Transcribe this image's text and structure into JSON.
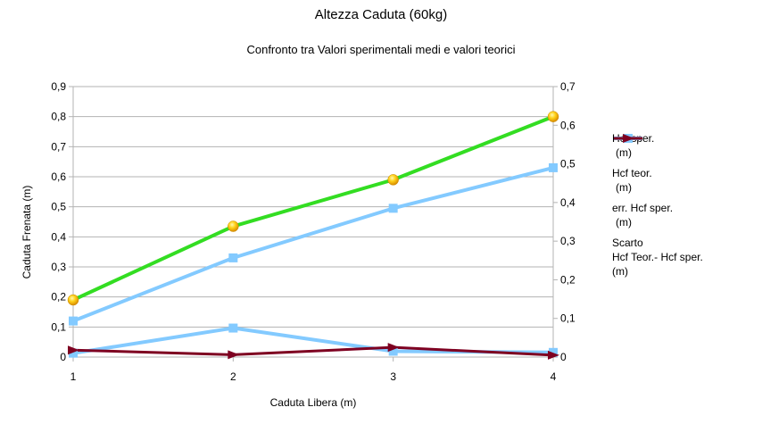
{
  "chart_data": {
    "type": "line",
    "title": "Altezza Caduta (60kg)",
    "subtitle": "Confronto tra Valori sperimentali medi e valori teorici",
    "xlabel": "Caduta Libera (m)",
    "ylabel": "Caduta Frenata (m)",
    "x": [
      1,
      2,
      3,
      4
    ],
    "x_ticks": [
      "1",
      "2",
      "3",
      "4"
    ],
    "y_left": {
      "range": [
        0,
        0.9
      ],
      "ticks": [
        "0",
        "0,1",
        "0,2",
        "0,3",
        "0,4",
        "0,5",
        "0,6",
        "0,7",
        "0,8",
        "0,9"
      ]
    },
    "y_right": {
      "range": [
        0,
        0.7
      ],
      "ticks": [
        "0",
        "0,1",
        "0,2",
        "0,3",
        "0,4",
        "0,5",
        "0,6",
        "0,7"
      ]
    },
    "grid": true,
    "legend_position": "right",
    "series": [
      {
        "name": "Hcf sper. (m)",
        "legend_lines": [
          "Hcf sper.",
          "(m)"
        ],
        "axis": "left",
        "color": "#83caff",
        "marker": "square",
        "values": [
          0.12,
          0.33,
          0.495,
          0.63
        ]
      },
      {
        "name": "Hcf teor. (m)",
        "legend_lines": [
          "Hcf teor.",
          "(m)"
        ],
        "axis": "left",
        "color": "#33dd22",
        "marker": "ball",
        "values": [
          0.19,
          0.435,
          0.59,
          0.8
        ]
      },
      {
        "name": "err. Hcf sper. (m)",
        "legend_lines": [
          "err. Hcf sper.",
          "(m)"
        ],
        "axis": "right",
        "color": "#83caff",
        "marker": "square",
        "values": [
          0.01,
          0.075,
          0.015,
          0.012
        ]
      },
      {
        "name": "Scarto Hcf Teor.- Hcf sper. (m)",
        "legend_lines": [
          "Scarto",
          "Hcf Teor.- Hcf sper.",
          "(m)"
        ],
        "axis": "right",
        "color": "#7e0021",
        "marker": "triangle",
        "values": [
          0.018,
          0.006,
          0.025,
          0.005
        ]
      }
    ]
  }
}
